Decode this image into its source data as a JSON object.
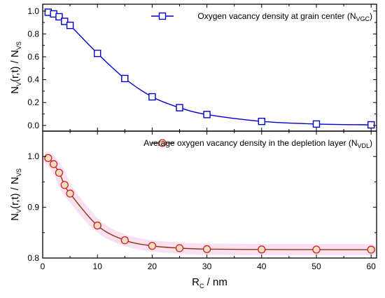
{
  "chart_data": [
    {
      "type": "line",
      "panel": "top",
      "ylim": [
        -0.05,
        1.06
      ],
      "xlim": [
        0,
        61
      ],
      "yticks": [
        0.0,
        0.2,
        0.4,
        0.6,
        0.8,
        1.0
      ],
      "ytick_labels": [
        "0.0",
        "0.2",
        "0.4",
        "0.6",
        "0.8",
        "1.0"
      ],
      "ylabel": {
        "main": "N",
        "sub1": "V",
        "mid": "(r,t) / N",
        "sub2": "VS"
      },
      "grid": false,
      "legend": {
        "position": "top-right",
        "text": "Oxygen vacancy density at grain center (N",
        "sub": "VGC",
        "close": ")"
      },
      "series": [
        {
          "marker": "square",
          "color": "#0000cc",
          "x": [
            1,
            2,
            3,
            4,
            5,
            10,
            15,
            20,
            25,
            30,
            40,
            50,
            60
          ],
          "y": [
            0.99,
            0.975,
            0.95,
            0.91,
            0.875,
            0.63,
            0.41,
            0.25,
            0.155,
            0.095,
            0.035,
            0.012,
            0.005
          ]
        }
      ]
    },
    {
      "type": "line",
      "panel": "bottom",
      "ylim": [
        0.8,
        1.05
      ],
      "xlim": [
        0,
        61
      ],
      "yticks": [
        0.8,
        0.9,
        1.0
      ],
      "ytick_labels": [
        "0.8",
        "0.9",
        "1.0"
      ],
      "ylabel": {
        "main": "N",
        "sub1": "V",
        "mid": "(r,t) / N",
        "sub2": "VS"
      },
      "xticks": [
        0,
        10,
        20,
        30,
        40,
        50,
        60
      ],
      "xtick_labels": [
        "0",
        "10",
        "20",
        "30",
        "40",
        "50",
        "60"
      ],
      "xlabel": {
        "main": "R",
        "sub": "C",
        "rest": " / nm"
      },
      "grid": false,
      "legend": {
        "position": "top-right",
        "text": "Average oxygen vacancy density in the depletion layer (N",
        "sub": "VDL",
        "close": ")"
      },
      "series": [
        {
          "marker": "circle",
          "color": "#cc2222",
          "line_color": "#8b3a0f",
          "fill": "#f0dcc0",
          "shade": "#f6c6e6",
          "x": [
            1,
            2,
            3,
            4,
            5,
            10,
            15,
            20,
            25,
            30,
            40,
            50,
            60
          ],
          "y": [
            0.997,
            0.985,
            0.968,
            0.944,
            0.927,
            0.864,
            0.835,
            0.824,
            0.8195,
            0.8175,
            0.8168,
            0.8166,
            0.8165
          ]
        }
      ]
    }
  ]
}
